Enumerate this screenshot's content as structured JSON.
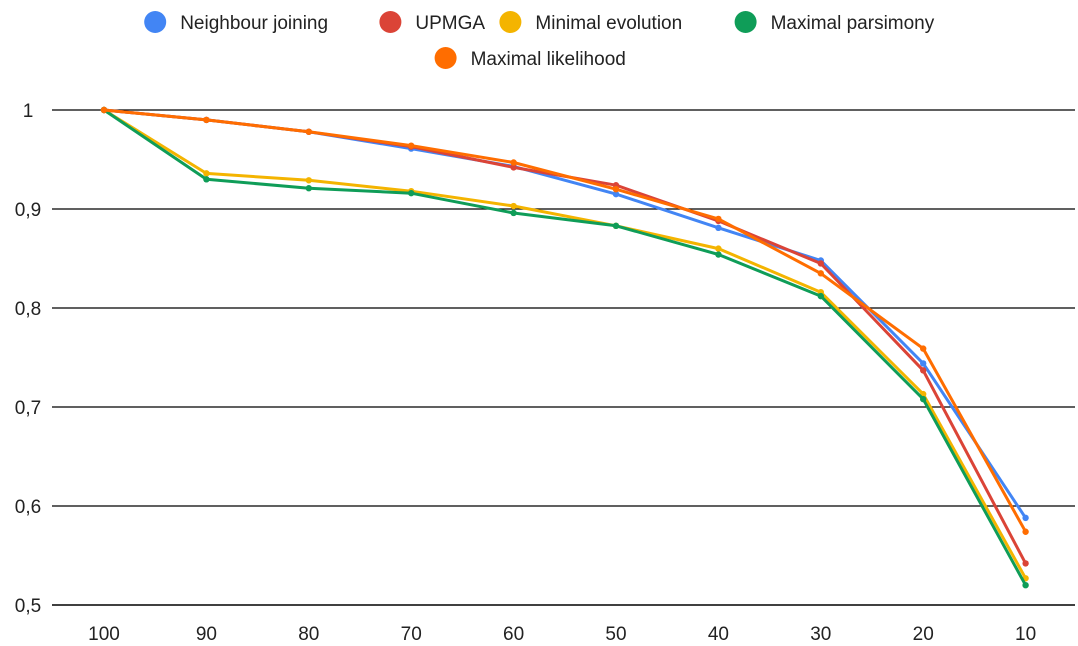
{
  "chart_data": {
    "type": "line",
    "title": "",
    "xlabel": "",
    "ylabel": "",
    "categories": [
      "100",
      "90",
      "80",
      "70",
      "60",
      "50",
      "40",
      "30",
      "20",
      "10"
    ],
    "ylim": [
      0.5,
      1.0
    ],
    "yticks": [
      0.5,
      0.6,
      0.7,
      0.8,
      0.9,
      1.0
    ],
    "ytick_labels": [
      "0,5",
      "0,6",
      "0,7",
      "0,8",
      "0,9",
      "1"
    ],
    "grid": "horizontal",
    "legend_position": "top",
    "series": [
      {
        "name": "Neighbour joining",
        "color": "#4285F4",
        "values": [
          1.0,
          0.99,
          0.978,
          0.961,
          0.943,
          0.915,
          0.881,
          0.848,
          0.744,
          0.588
        ]
      },
      {
        "name": "UPMGA",
        "color": "#DB4437",
        "values": [
          1.0,
          0.99,
          0.978,
          0.963,
          0.942,
          0.924,
          0.888,
          0.845,
          0.737,
          0.542
        ]
      },
      {
        "name": "Minimal evolution",
        "color": "#F4B400",
        "values": [
          1.0,
          0.936,
          0.929,
          0.918,
          0.903,
          0.883,
          0.86,
          0.816,
          0.713,
          0.527
        ]
      },
      {
        "name": "Maximal parsimony",
        "color": "#0F9D58",
        "values": [
          1.0,
          0.93,
          0.921,
          0.916,
          0.896,
          0.883,
          0.854,
          0.812,
          0.708,
          0.52
        ]
      },
      {
        "name": "Maximal likelihood",
        "color": "#FF6D00",
        "values": [
          1.0,
          0.99,
          0.978,
          0.964,
          0.947,
          0.92,
          0.89,
          0.835,
          0.759,
          0.574
        ]
      }
    ]
  }
}
